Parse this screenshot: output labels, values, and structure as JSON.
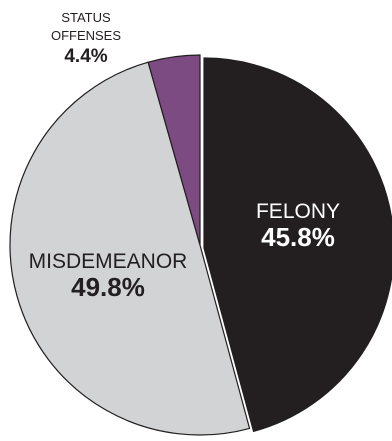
{
  "chart_data": {
    "type": "pie",
    "categories": [
      "FELONY",
      "MISDEMEANOR",
      "STATUS OFFENSES"
    ],
    "values": [
      45.8,
      49.8,
      4.4
    ],
    "value_labels": [
      "45.8%",
      "49.8%",
      "4.4%"
    ],
    "label_lines": [
      [
        "FELONY"
      ],
      [
        "MISDEMEANOR"
      ],
      [
        "STATUS",
        "OFFENSES"
      ]
    ],
    "colors": [
      "#231f20",
      "#d1d3d4",
      "#7b4b82"
    ],
    "exploded_slice": "FELONY",
    "start_angle_deg": 0,
    "direction": "clockwise from top"
  }
}
